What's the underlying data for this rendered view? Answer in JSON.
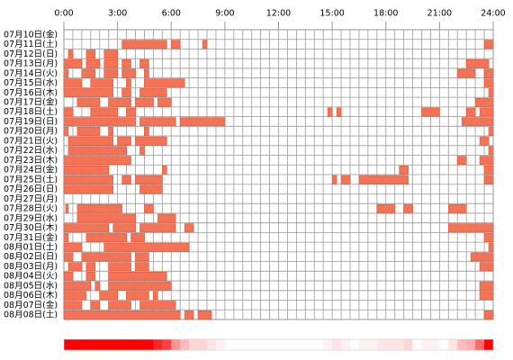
{
  "chart_data": {
    "type": "timeline",
    "xlim": [
      0,
      24
    ],
    "xticks": [
      {
        "value": 0,
        "label": "0:00"
      },
      {
        "value": 3,
        "label": "3:00"
      },
      {
        "value": 6,
        "label": "6:00"
      },
      {
        "value": 9,
        "label": "9:00"
      },
      {
        "value": 12,
        "label": "12:00"
      },
      {
        "value": 15,
        "label": "15:00"
      },
      {
        "value": 18,
        "label": "18:00"
      },
      {
        "value": 21,
        "label": "21:00"
      },
      {
        "value": 24,
        "label": "24:00"
      }
    ],
    "color": "#f47256",
    "grid": true,
    "categories": [
      "07月10日(金)",
      "07月11日(土)",
      "07月12日(日)",
      "07月13日(月)",
      "07月14日(火)",
      "07月15日(水)",
      "07月16日(木)",
      "07月17日(金)",
      "07月18日(土)",
      "07月19日(日)",
      "07月20日(月)",
      "07月21日(火)",
      "07月22日(水)",
      "07月23日(木)",
      "07月24日(金)",
      "07月25日(土)",
      "07月26日(日)",
      "07月27日(月)",
      "07月28日(火)",
      "07月29日(水)",
      "07月30日(木)",
      "07月31日(金)",
      "08月01日(土)",
      "08月02日(日)",
      "08月03日(月)",
      "08月04日(火)",
      "08月05日(水)",
      "08月06日(木)",
      "08月07日(金)",
      "08月08日(土)"
    ],
    "rows": [
      {
        "segments": []
      },
      {
        "segments": [
          [
            3.25,
            5.75
          ],
          [
            6,
            6.5
          ],
          [
            7.75,
            8
          ],
          [
            23.5,
            24
          ]
        ]
      },
      {
        "segments": [
          [
            0.25,
            0.5
          ],
          [
            1.25,
            1.75
          ],
          [
            2.25,
            3
          ]
        ]
      },
      {
        "segments": [
          [
            0,
            1
          ],
          [
            1.25,
            2
          ],
          [
            2.25,
            3
          ],
          [
            3.25,
            3.75
          ],
          [
            4.25,
            4.75
          ],
          [
            22.5,
            23.75
          ]
        ]
      },
      {
        "segments": [
          [
            0,
            0.25
          ],
          [
            1,
            1.75
          ],
          [
            2.25,
            3
          ],
          [
            3.25,
            4
          ],
          [
            4.5,
            4.75
          ],
          [
            22,
            23
          ],
          [
            23.5,
            24
          ]
        ]
      },
      {
        "segments": [
          [
            0,
            1
          ],
          [
            1.5,
            2.75
          ],
          [
            3.5,
            3.75
          ],
          [
            4.5,
            6.75
          ],
          [
            23.5,
            24
          ]
        ]
      },
      {
        "segments": [
          [
            0,
            2.75
          ],
          [
            3.25,
            3.75
          ],
          [
            4.25,
            5.75
          ],
          [
            23.75,
            24
          ]
        ]
      },
      {
        "segments": [
          [
            0.75,
            2
          ],
          [
            2.5,
            3.75
          ],
          [
            4,
            5
          ],
          [
            5.25,
            6
          ],
          [
            23,
            24
          ]
        ]
      },
      {
        "segments": [
          [
            0,
            0.5
          ],
          [
            1.5,
            3
          ],
          [
            3.5,
            4
          ],
          [
            14.75,
            15
          ],
          [
            15.25,
            15.5
          ],
          [
            20,
            21
          ],
          [
            22.5,
            23
          ],
          [
            23.25,
            24
          ]
        ]
      },
      {
        "segments": [
          [
            0,
            4
          ],
          [
            4.25,
            6.25
          ],
          [
            6.5,
            9
          ],
          [
            22.25,
            24
          ]
        ]
      },
      {
        "segments": [
          [
            0,
            0.25
          ],
          [
            0.75,
            2
          ],
          [
            2.5,
            2.75
          ],
          [
            4.5,
            4.75
          ],
          [
            23.75,
            24
          ]
        ]
      },
      {
        "segments": [
          [
            0.25,
            2.75
          ],
          [
            3,
            3.75
          ],
          [
            4,
            5.75
          ],
          [
            23.25,
            23.75
          ]
        ]
      },
      {
        "segments": [
          [
            0.25,
            3.5
          ],
          [
            4.25,
            4.5
          ],
          [
            23.75,
            24
          ]
        ]
      },
      {
        "segments": [
          [
            0,
            3.75
          ],
          [
            22,
            22.5
          ],
          [
            23.25,
            24
          ]
        ]
      },
      {
        "segments": [
          [
            0,
            2.5
          ],
          [
            5.5,
            5.75
          ],
          [
            18.75,
            19.25
          ],
          [
            23.5,
            24
          ]
        ]
      },
      {
        "segments": [
          [
            0,
            2.75
          ],
          [
            3.25,
            3.75
          ],
          [
            4,
            5.5
          ],
          [
            15,
            15.25
          ],
          [
            15.5,
            16
          ],
          [
            16.5,
            19.25
          ],
          [
            23.5,
            24
          ]
        ]
      },
      {
        "segments": [
          [
            0,
            2.75
          ],
          [
            4.25,
            5.5
          ]
        ]
      },
      {
        "segments": []
      },
      {
        "segments": [
          [
            0.1,
            0.25
          ],
          [
            0.75,
            3.25
          ],
          [
            4.5,
            5
          ],
          [
            17.5,
            18.5
          ],
          [
            19,
            19.5
          ],
          [
            21.5,
            22.5
          ]
        ]
      },
      {
        "segments": [
          [
            0.75,
            4
          ],
          [
            5.25,
            6.25
          ]
        ]
      },
      {
        "segments": [
          [
            0,
            2.5
          ],
          [
            2.75,
            4
          ],
          [
            4.25,
            6.25
          ],
          [
            6.75,
            7.25
          ],
          [
            21.5,
            24
          ]
        ]
      },
      {
        "segments": [
          [
            0,
            0.25
          ],
          [
            1.25,
            3.5
          ],
          [
            3.75,
            4.5
          ],
          [
            23.5,
            24
          ]
        ]
      },
      {
        "segments": [
          [
            0,
            1
          ],
          [
            2.25,
            7
          ],
          [
            23.75,
            24
          ]
        ]
      },
      {
        "segments": [
          [
            0,
            0.5
          ],
          [
            1,
            3.75
          ],
          [
            4,
            4.75
          ],
          [
            22.75,
            24
          ]
        ]
      },
      {
        "segments": [
          [
            0.25,
            1
          ],
          [
            1.25,
            1.75
          ],
          [
            2.5,
            3.75
          ],
          [
            4,
            4.75
          ],
          [
            23.25,
            24
          ]
        ]
      },
      {
        "segments": [
          [
            0,
            0.5
          ],
          [
            1.25,
            1.75
          ],
          [
            2.5,
            5.75
          ]
        ]
      },
      {
        "segments": [
          [
            0,
            1.5
          ],
          [
            1.75,
            2
          ],
          [
            2.5,
            6
          ],
          [
            23.25,
            24
          ]
        ]
      },
      {
        "segments": [
          [
            0,
            1.25
          ],
          [
            2,
            3
          ],
          [
            3.5,
            4.75
          ],
          [
            5,
            5.25
          ],
          [
            23.25,
            24
          ]
        ]
      },
      {
        "segments": [
          [
            0,
            1
          ],
          [
            1.5,
            2
          ],
          [
            2.5,
            3.75
          ],
          [
            4.25,
            6.25
          ]
        ]
      },
      {
        "segments": [
          [
            0,
            6.5
          ],
          [
            6.75,
            7.25
          ],
          [
            7.5,
            8.25
          ],
          [
            23.5,
            24
          ]
        ]
      }
    ]
  }
}
